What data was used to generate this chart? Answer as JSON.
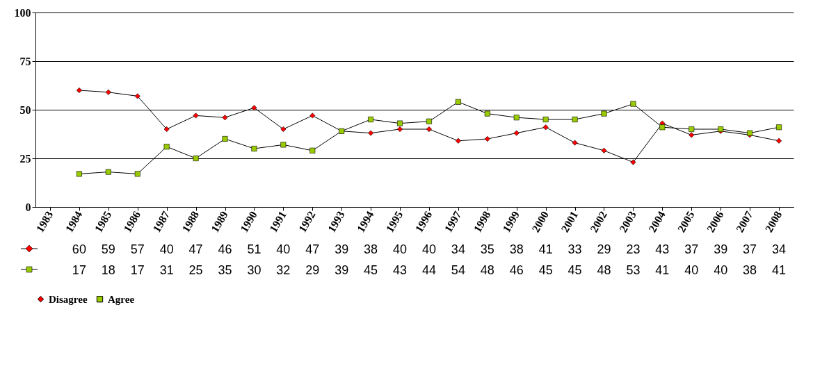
{
  "chart_data": {
    "type": "line",
    "categories": [
      "1983",
      "1984",
      "1985",
      "1986",
      "1987",
      "1988",
      "1989",
      "1990",
      "1991",
      "1992",
      "1993",
      "1994",
      "1995",
      "1996",
      "1997",
      "1998",
      "1999",
      "2000",
      "2001",
      "2002",
      "2003",
      "2004",
      "2005",
      "2006",
      "2007",
      "2008"
    ],
    "series": [
      {
        "name": "Disagree",
        "color": "#ff0000",
        "marker": "diamond",
        "values": [
          null,
          60,
          59,
          57,
          40,
          47,
          46,
          51,
          40,
          47,
          39,
          38,
          40,
          40,
          34,
          35,
          38,
          41,
          33,
          29,
          23,
          43,
          37,
          39,
          37,
          34
        ]
      },
      {
        "name": "Agree",
        "color": "#99cc00",
        "marker": "square",
        "values": [
          null,
          17,
          18,
          17,
          31,
          25,
          35,
          30,
          32,
          29,
          39,
          45,
          43,
          44,
          54,
          48,
          46,
          45,
          45,
          48,
          53,
          41,
          40,
          40,
          38,
          41
        ]
      }
    ],
    "ylim": [
      0,
      100
    ],
    "yticks": [
      0,
      25,
      50,
      75,
      100
    ],
    "grid": "y",
    "legend": "bottom",
    "data_labels": true,
    "line_style": "solid"
  }
}
